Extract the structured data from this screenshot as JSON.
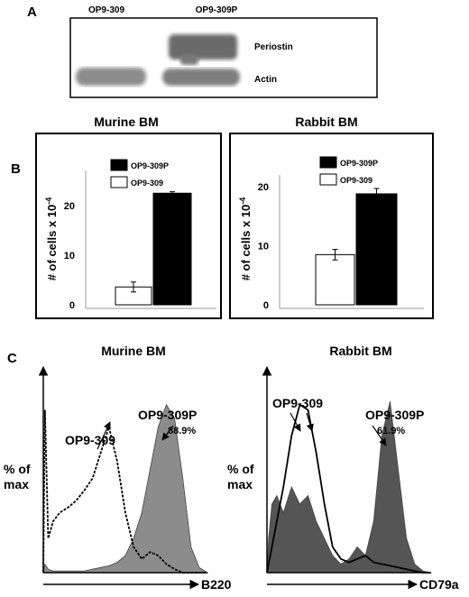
{
  "panel_labels": [
    "A",
    "B",
    "C"
  ],
  "blot": {
    "lanes": [
      "OP9-309",
      "OP9-309P"
    ],
    "bands": [
      "Periostin",
      "Actin"
    ]
  },
  "chart_data": [
    {
      "type": "bar",
      "title": "Murine BM",
      "ylabel": "# of cells x 10",
      "ylabel_exponent": "-4",
      "ylim": [
        0,
        27
      ],
      "yticks": [
        0,
        10,
        20
      ],
      "series": [
        {
          "name": "OP9-309",
          "color": "#ffffff",
          "values": [
            3.6
          ],
          "errors": [
            1
          ]
        },
        {
          "name": "OP9-309P",
          "color": "#000000",
          "values": [
            22.5
          ],
          "errors": [
            0.3
          ]
        }
      ]
    },
    {
      "type": "bar",
      "title": "Rabbit BM",
      "ylabel": "# of cells x 10",
      "ylabel_exponent": "-4",
      "ylim": [
        0,
        22
      ],
      "yticks": [
        0,
        10,
        20
      ],
      "series": [
        {
          "name": "OP9-309",
          "color": "#ffffff",
          "values": [
            8.5
          ],
          "errors": [
            0.9
          ]
        },
        {
          "name": "OP9-309P",
          "color": "#000000",
          "values": [
            18.8
          ],
          "errors": [
            0.9
          ]
        }
      ]
    },
    {
      "type": "histogram",
      "title": "Murine BM",
      "xlabel": "B220",
      "ylabel": "% of max",
      "xlim": [
        0,
        100
      ],
      "ylim": [
        0,
        100
      ],
      "x": [
        0,
        1,
        3,
        6,
        10,
        15,
        20,
        25,
        30,
        35,
        40,
        45,
        50,
        55,
        60,
        65,
        70,
        75,
        80,
        85,
        90,
        95,
        100
      ],
      "series": [
        {
          "name": "OP9-309",
          "color": "#000000",
          "dash": true,
          "values": [
            0,
            95,
            20,
            30,
            35,
            38,
            42,
            48,
            55,
            70,
            85,
            65,
            35,
            15,
            8,
            12,
            10,
            5,
            2,
            0,
            0,
            0,
            0
          ]
        },
        {
          "name": "OP9-309P",
          "color": "#8c8c8c",
          "fill": true,
          "values": [
            0,
            5,
            2,
            1,
            1,
            1,
            1,
            1,
            2,
            3,
            4,
            6,
            10,
            20,
            35,
            60,
            85,
            98,
            90,
            55,
            15,
            3,
            0
          ]
        }
      ],
      "annotations": [
        "88.9%"
      ]
    },
    {
      "type": "histogram",
      "title": "Rabbit BM",
      "xlabel": "CD79a",
      "ylabel": "% of max",
      "xlim": [
        0,
        100
      ],
      "ylim": [
        0,
        100
      ],
      "x": [
        0,
        1,
        3,
        6,
        10,
        15,
        20,
        25,
        30,
        35,
        40,
        45,
        50,
        55,
        60,
        65,
        70,
        75,
        80,
        85,
        90,
        95,
        100
      ],
      "series": [
        {
          "name": "OP9-309",
          "color": "#000000",
          "dash": false,
          "values": [
            0,
            5,
            15,
            30,
            50,
            80,
            98,
            95,
            70,
            40,
            15,
            8,
            6,
            8,
            10,
            6,
            5,
            4,
            3,
            2,
            1,
            0,
            0
          ]
        },
        {
          "name": "OP9-309P",
          "color": "#555555",
          "fill": true,
          "values": [
            0,
            20,
            40,
            45,
            35,
            50,
            40,
            45,
            30,
            20,
            10,
            5,
            8,
            15,
            10,
            30,
            80,
            100,
            60,
            20,
            5,
            1,
            0
          ]
        }
      ],
      "annotations": [
        "61.9%"
      ]
    }
  ]
}
